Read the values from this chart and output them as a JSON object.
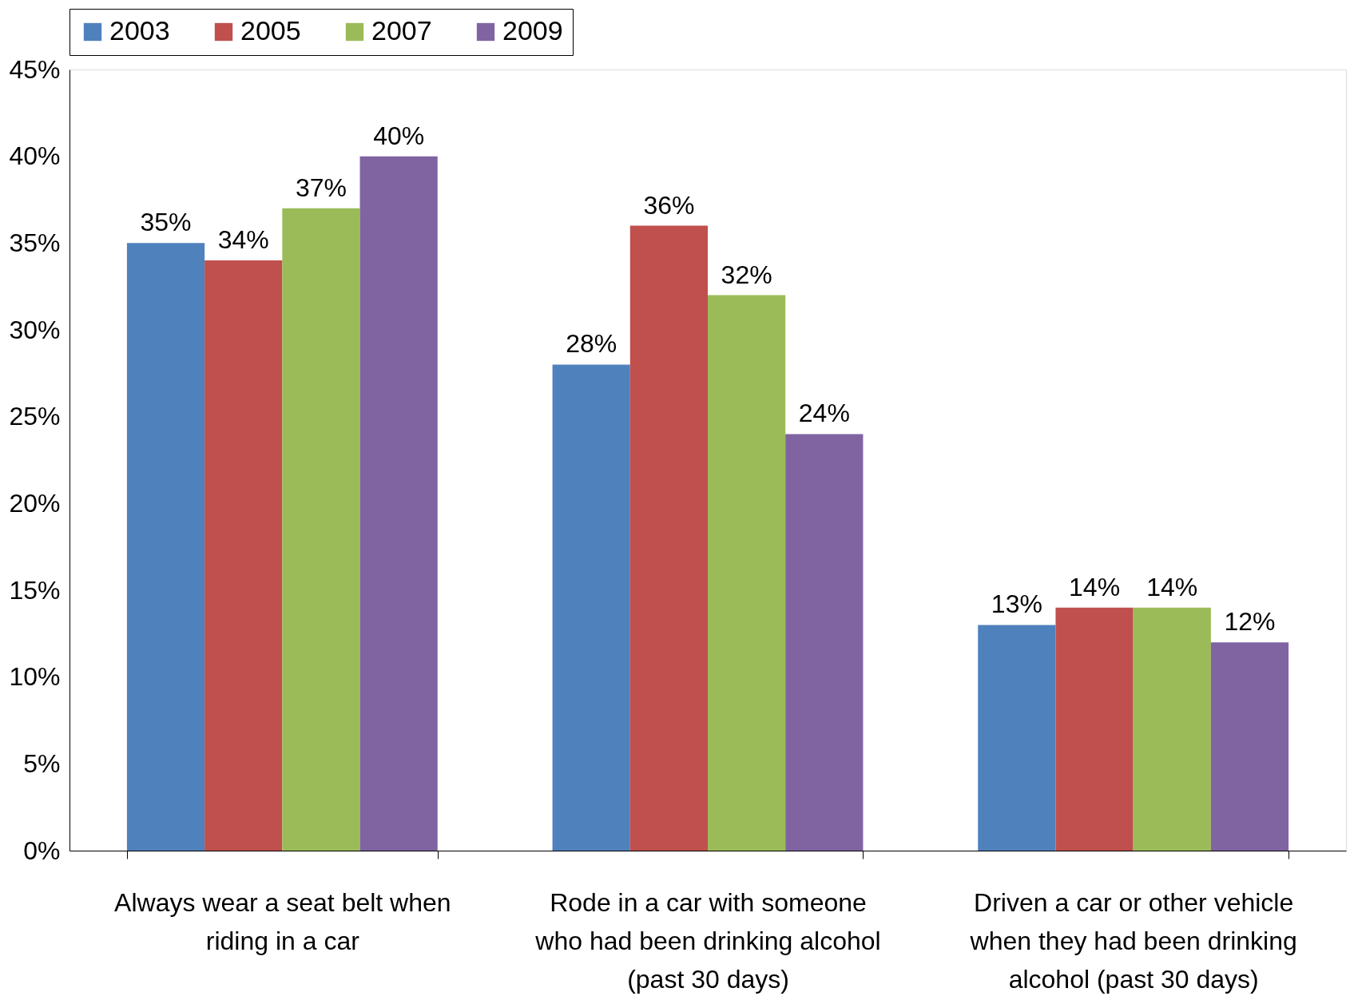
{
  "chart_data": {
    "type": "bar",
    "categories": [
      "Always wear a seat belt when riding in a car",
      "Rode in a car with someone who had been drinking alcohol (past 30 days)",
      "Driven a car or other vehicle when they had been drinking alcohol (past 30 days)"
    ],
    "series": [
      {
        "name": "2003",
        "color": "#4f81bd",
        "values": [
          35,
          28,
          13
        ],
        "value_labels": [
          "35%",
          "28%",
          "13%"
        ]
      },
      {
        "name": "2005",
        "color": "#c0504d",
        "values": [
          34,
          36,
          14
        ],
        "value_labels": [
          "34%",
          "36%",
          "14%"
        ]
      },
      {
        "name": "2007",
        "color": "#9bbb59",
        "values": [
          37,
          32,
          14
        ],
        "value_labels": [
          "37%",
          "32%",
          "14%"
        ]
      },
      {
        "name": "2009",
        "color": "#8064a2",
        "values": [
          40,
          24,
          12
        ],
        "value_labels": [
          "40%",
          "24%",
          "12%"
        ]
      }
    ],
    "ylim": [
      0,
      45
    ],
    "yticks": [
      {
        "value": 0,
        "label": "0%"
      },
      {
        "value": 5,
        "label": "5%"
      },
      {
        "value": 10,
        "label": "10%"
      },
      {
        "value": 15,
        "label": "15%"
      },
      {
        "value": 20,
        "label": "20%"
      },
      {
        "value": 25,
        "label": "25%"
      },
      {
        "value": 30,
        "label": "30%"
      },
      {
        "value": 35,
        "label": "35%"
      },
      {
        "value": 40,
        "label": "40%"
      },
      {
        "value": 45,
        "label": "45%"
      }
    ],
    "grid": false,
    "legend": "top"
  }
}
